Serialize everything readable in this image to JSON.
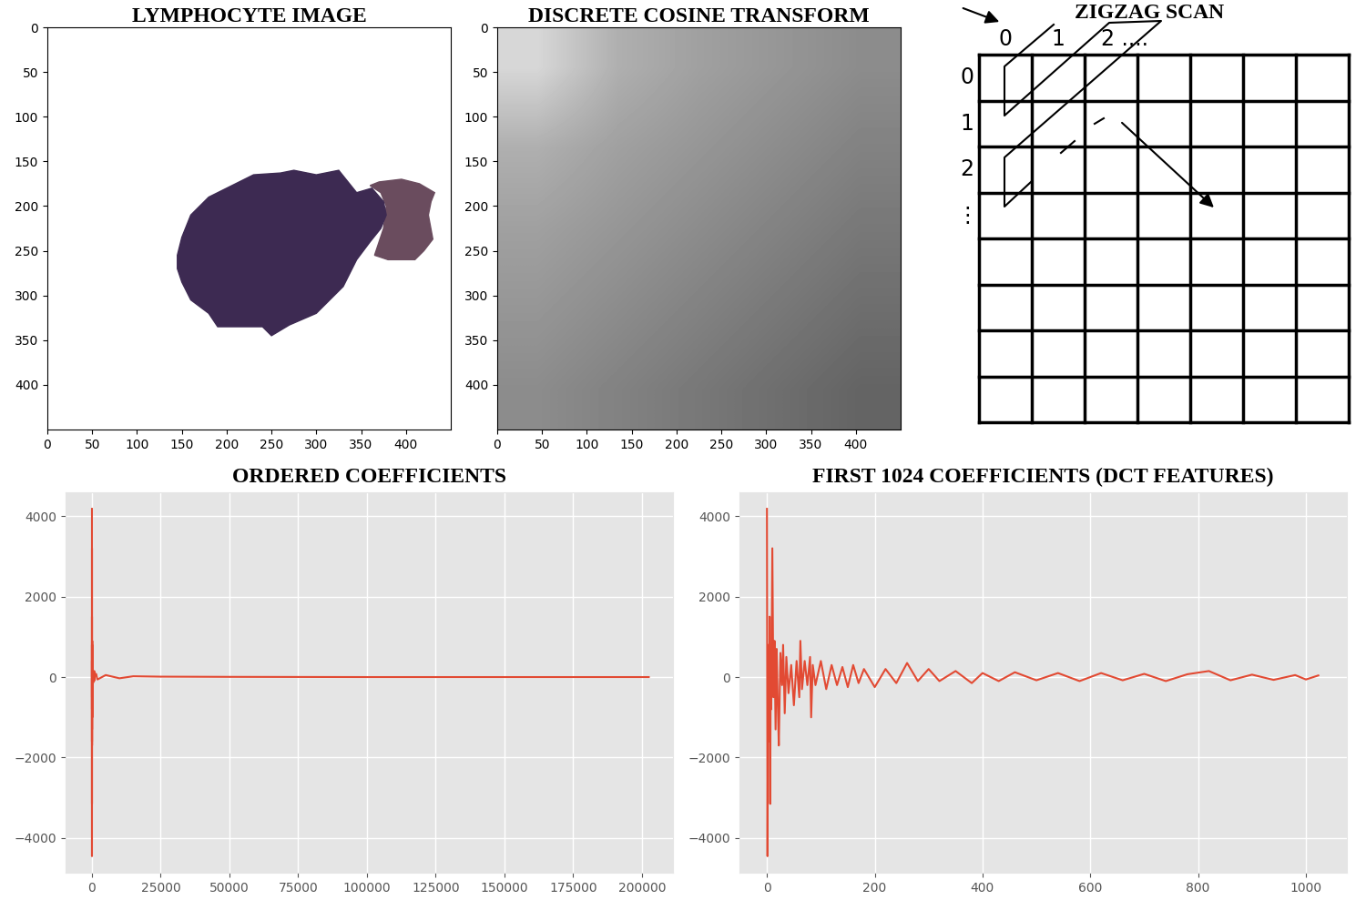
{
  "chart_data": [
    {
      "type": "image",
      "title": "LYMPHOCYTE IMAGE",
      "background": "#ffffff",
      "regions": [
        {
          "color": "#6a4c5e",
          "x": [
            360,
            370,
            395,
            415,
            432,
            428,
            425,
            430,
            420,
            410,
            380,
            365,
            375,
            378,
            372
          ],
          "y": [
            177,
            173,
            170,
            175,
            185,
            195,
            210,
            237,
            250,
            260,
            260,
            255,
            225,
            200,
            185
          ]
        },
        {
          "color": "#3d2a52",
          "x": [
            145,
            150,
            160,
            180,
            200,
            230,
            260,
            275,
            300,
            325,
            345,
            362,
            375,
            378,
            372,
            360,
            345,
            330,
            300,
            270,
            250,
            240,
            190,
            180,
            160,
            150,
            145
          ],
          "y": [
            255,
            235,
            210,
            190,
            180,
            165,
            163,
            160,
            165,
            160,
            185,
            180,
            195,
            210,
            225,
            240,
            260,
            290,
            320,
            333,
            345,
            335,
            335,
            320,
            305,
            285,
            270
          ]
        }
      ],
      "xlim": [
        0,
        450
      ],
      "ylim": [
        450,
        0
      ],
      "xticks": [
        0,
        50,
        100,
        150,
        200,
        250,
        300,
        350,
        400
      ],
      "yticks": [
        0,
        50,
        100,
        150,
        200,
        250,
        300,
        350,
        400
      ]
    },
    {
      "type": "heatmap",
      "title": "DISCRETE COSINE TRANSFORM",
      "cells": [
        [
          215,
          175,
          160,
          150,
          140
        ],
        [
          175,
          160,
          150,
          140,
          130
        ],
        [
          160,
          150,
          140,
          130,
          120
        ],
        [
          150,
          140,
          130,
          120,
          110
        ],
        [
          140,
          130,
          120,
          110,
          100
        ]
      ],
      "clim": [
        0,
        255
      ],
      "xlim": [
        0,
        450
      ],
      "ylim": [
        450,
        0
      ],
      "xticks": [
        0,
        50,
        100,
        150,
        200,
        250,
        300,
        350,
        400
      ],
      "yticks": [
        0,
        50,
        100,
        150,
        200,
        250,
        300,
        350,
        400
      ]
    },
    {
      "type": "diagram",
      "title": "ZIGZAG SCAN",
      "rows": 8,
      "columns": 7,
      "column_labels": [
        "0",
        "1",
        "2 ...."
      ],
      "row_labels": [
        "0",
        "1",
        "2",
        "⋮"
      ]
    },
    {
      "type": "line",
      "title": "ORDERED COEFFICIENTS",
      "color": "#E24A33",
      "grid": true,
      "x": [
        0,
        1,
        2,
        3,
        4,
        5,
        6,
        7,
        8,
        10,
        12,
        14,
        16,
        18,
        20,
        22,
        25,
        28,
        30,
        33,
        36,
        40,
        45,
        50,
        55,
        60,
        62,
        65,
        70,
        75,
        80,
        82,
        85,
        90,
        100,
        110,
        120,
        130,
        140,
        150,
        160,
        170,
        180,
        200,
        220,
        240,
        260,
        280,
        300,
        320,
        350,
        380,
        400,
        430,
        460,
        500,
        540,
        580,
        620,
        660,
        700,
        740,
        780,
        820,
        860,
        900,
        940,
        980,
        1000,
        1023,
        1500,
        2000,
        5000,
        10000,
        15000,
        25000,
        50000,
        100000,
        150000,
        202499
      ],
      "values": [
        4180,
        -4450,
        -300,
        800,
        -1600,
        1500,
        -3150,
        400,
        -800,
        3200,
        -500,
        900,
        -1300,
        700,
        -600,
        -1700,
        600,
        -200,
        800,
        -900,
        500,
        -400,
        300,
        -700,
        400,
        -500,
        900,
        -300,
        400,
        -200,
        500,
        -1000,
        300,
        -200,
        400,
        -300,
        300,
        -200,
        250,
        -250,
        300,
        -150,
        200,
        -250,
        200,
        -150,
        350,
        -100,
        200,
        -100,
        150,
        -150,
        100,
        -100,
        120,
        -80,
        100,
        -100,
        100,
        -80,
        80,
        -100,
        70,
        150,
        -80,
        60,
        -70,
        50,
        -60,
        40,
        80,
        -60,
        50,
        -30,
        20,
        10,
        5,
        0,
        0,
        0
      ],
      "xlim": [
        -9600,
        211300
      ],
      "ylim": [
        -4860,
        4590
      ],
      "xticks": [
        0,
        25000,
        50000,
        75000,
        100000,
        125000,
        150000,
        175000,
        200000
      ],
      "yticks": [
        {
          "value": -4000,
          "label": "−4000"
        },
        {
          "value": -2000,
          "label": "−2000"
        },
        0,
        2000,
        4000
      ]
    },
    {
      "type": "line",
      "title": "FIRST 1024 COEFFICIENTS (DCT FEATURES)",
      "color": "#E24A33",
      "grid": true,
      "x": [
        0,
        1,
        2,
        3,
        4,
        5,
        6,
        7,
        8,
        10,
        12,
        14,
        16,
        18,
        20,
        22,
        25,
        28,
        30,
        33,
        36,
        40,
        45,
        50,
        55,
        60,
        62,
        65,
        70,
        75,
        80,
        82,
        85,
        90,
        100,
        110,
        120,
        130,
        140,
        150,
        160,
        170,
        180,
        200,
        220,
        240,
        260,
        280,
        300,
        320,
        350,
        380,
        400,
        430,
        460,
        500,
        540,
        580,
        620,
        660,
        700,
        740,
        780,
        820,
        860,
        900,
        940,
        980,
        1000,
        1023
      ],
      "values": [
        4180,
        -4450,
        -300,
        800,
        -1600,
        1500,
        -3150,
        400,
        -800,
        3200,
        -500,
        900,
        -1300,
        700,
        -600,
        -1700,
        600,
        -200,
        800,
        -900,
        500,
        -400,
        300,
        -700,
        400,
        -500,
        900,
        -300,
        400,
        -200,
        500,
        -1000,
        300,
        -200,
        400,
        -300,
        300,
        -200,
        250,
        -250,
        300,
        -150,
        200,
        -250,
        200,
        -150,
        350,
        -100,
        200,
        -100,
        150,
        -150,
        100,
        -100,
        120,
        -80,
        100,
        -100,
        100,
        -80,
        80,
        -100,
        70,
        150,
        -80,
        60,
        -70,
        50,
        -60,
        40
      ],
      "xlim": [
        -51,
        1076
      ],
      "ylim": [
        -4860,
        4590
      ],
      "xticks": [
        0,
        200,
        400,
        600,
        800,
        1000
      ],
      "yticks": [
        {
          "value": -4000,
          "label": "−4000"
        },
        {
          "value": -2000,
          "label": "−2000"
        },
        0,
        2000,
        4000
      ]
    }
  ]
}
